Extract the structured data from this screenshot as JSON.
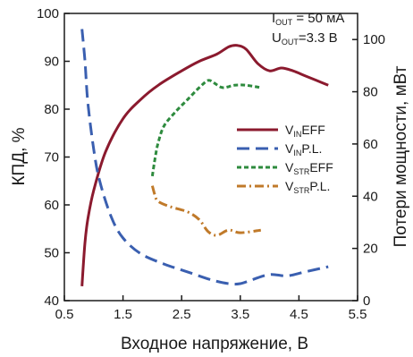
{
  "chart_data": {
    "type": "line",
    "xlabel": "Входное напряжение, В",
    "ylabel_left": "КПД, %",
    "ylabel_right": "Потери мощности, мВт",
    "xlim": [
      0.5,
      5.5
    ],
    "ylim_left": [
      40,
      100
    ],
    "ylim_right": [
      0,
      110
    ],
    "x_ticks": [
      "0.5",
      "1.5",
      "2.5",
      "3.5",
      "4.5",
      "5.5"
    ],
    "y_left_ticks": [
      "40",
      "50",
      "60",
      "70",
      "80",
      "90",
      "100"
    ],
    "y_right_ticks": [
      "0",
      "20",
      "40",
      "60",
      "80",
      "100"
    ],
    "grid": false,
    "legend_position": "right-middle",
    "annotation": {
      "line1": {
        "main": "I",
        "sub": "OUT",
        "rest": " = 50 мА"
      },
      "line2": {
        "main": "U",
        "sub": "OUT",
        "rest": "=3.3 В"
      }
    },
    "series": [
      {
        "name": "VINEFF",
        "label": {
          "main": "V",
          "sub": "IN",
          "rest": "EFF"
        },
        "axis": "left",
        "color": "#8b1a2e",
        "dash": "solid",
        "x": [
          0.8,
          0.85,
          0.9,
          1.0,
          1.2,
          1.5,
          1.8,
          2.1,
          2.5,
          2.8,
          3.1,
          3.3,
          3.45,
          3.6,
          3.8,
          4.0,
          4.2,
          4.4,
          4.6,
          4.8,
          5.0
        ],
        "y": [
          43,
          52,
          57,
          63,
          71,
          78,
          82,
          85,
          88,
          90,
          91.5,
          93,
          93.3,
          92.5,
          89.5,
          88,
          88.6,
          88,
          87,
          86,
          85
        ]
      },
      {
        "name": "VINP.L.",
        "label": {
          "main": "V",
          "sub": "IN",
          "rest": "P.L."
        },
        "axis": "right",
        "color": "#3a5fb0",
        "dash": "long-dash",
        "x": [
          0.8,
          0.85,
          0.9,
          1.0,
          1.1,
          1.3,
          1.5,
          1.8,
          2.2,
          2.6,
          3.0,
          3.3,
          3.5,
          3.7,
          4.0,
          4.3,
          4.6,
          5.0
        ],
        "y": [
          104,
          92,
          76,
          58,
          46,
          32,
          24,
          18,
          14,
          11,
          8,
          6.5,
          6.5,
          8,
          10,
          9.5,
          11,
          13
        ]
      },
      {
        "name": "VSTREFF",
        "label": {
          "main": "V",
          "sub": "STR",
          "rest": "EFF"
        },
        "axis": "left",
        "color": "#2e8b3e",
        "dash": "short-dash",
        "x": [
          2.0,
          2.05,
          2.1,
          2.2,
          2.4,
          2.6,
          2.8,
          2.95,
          3.05,
          3.2,
          3.4,
          3.6,
          3.85
        ],
        "y": [
          66,
          70,
          73,
          76.5,
          79.5,
          82,
          84.5,
          86,
          85.5,
          84.5,
          85,
          85,
          84.5
        ]
      },
      {
        "name": "VSTRP.L.",
        "label": {
          "main": "V",
          "sub": "STR",
          "rest": "P.L."
        },
        "axis": "right",
        "color": "#c07a2a",
        "dash": "dash-dot",
        "x": [
          2.0,
          2.05,
          2.1,
          2.3,
          2.6,
          2.8,
          2.95,
          3.1,
          3.3,
          3.5,
          3.85
        ],
        "y": [
          44,
          40,
          38,
          36,
          34,
          31,
          26.5,
          25,
          27,
          26,
          27
        ]
      }
    ]
  }
}
